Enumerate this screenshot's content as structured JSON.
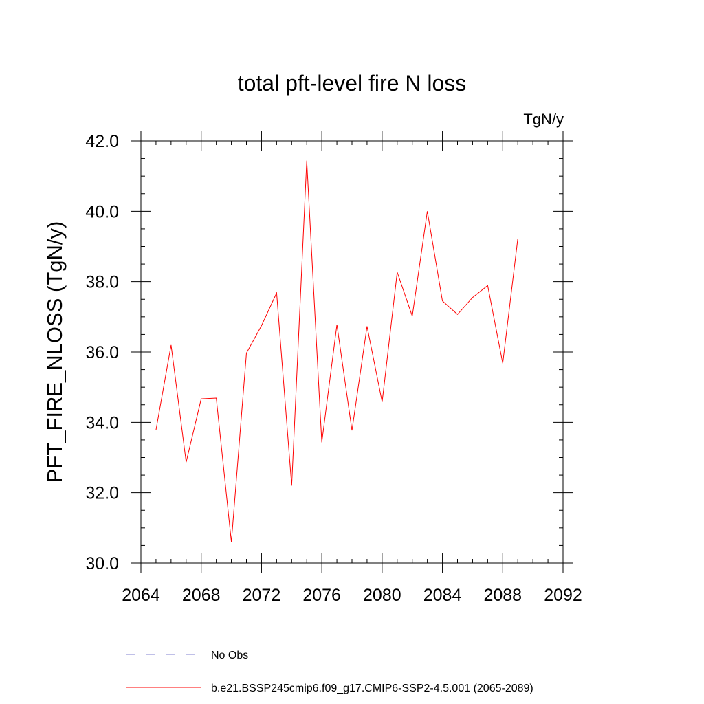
{
  "chart_data": {
    "type": "line",
    "title": "total pft-level fire N loss",
    "units": "TgN/y",
    "xlabel": "",
    "ylabel": "PFT_FIRE_NLOSS  (TgN/y)",
    "xlim": [
      2064,
      2092
    ],
    "ylim": [
      30.0,
      42.0
    ],
    "xticks": [
      2064,
      2068,
      2072,
      2076,
      2080,
      2084,
      2088,
      2092
    ],
    "yticks": [
      30.0,
      32.0,
      34.0,
      36.0,
      38.0,
      40.0,
      42.0
    ],
    "grid": false,
    "legend_position": "bottom",
    "series": [
      {
        "name": "b.e21.BSSP245cmip6.f09_g17.CMIP6-SSP2-4.5.001 (2065-2089)",
        "color": "#ff0000",
        "style": "solid",
        "x": [
          2065,
          2066,
          2067,
          2068,
          2069,
          2070,
          2071,
          2072,
          2073,
          2074,
          2075,
          2076,
          2077,
          2078,
          2079,
          2080,
          2081,
          2082,
          2083,
          2084,
          2085,
          2086,
          2087,
          2088,
          2089
        ],
        "y": [
          33.78,
          36.2,
          32.87,
          34.67,
          34.69,
          30.6,
          35.97,
          36.75,
          37.68,
          32.2,
          41.44,
          33.43,
          36.78,
          33.77,
          36.73,
          34.58,
          38.27,
          37.02,
          40.0,
          37.45,
          37.07,
          37.55,
          37.89,
          35.68,
          39.22
        ]
      }
    ],
    "legend": [
      {
        "label": "No Obs",
        "color": "#8080d0",
        "style": "dashed"
      },
      {
        "label": "b.e21.BSSP245cmip6.f09_g17.CMIP6-SSP2-4.5.001 (2065-2089)",
        "color": "#ff0000",
        "style": "solid"
      }
    ]
  }
}
